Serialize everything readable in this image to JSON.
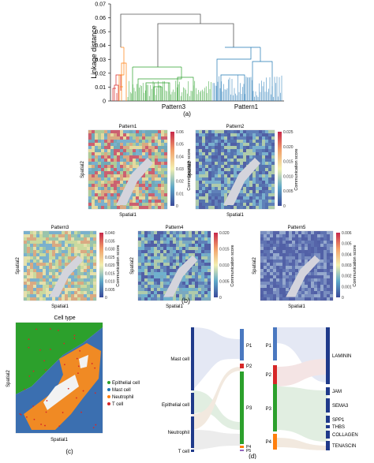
{
  "panel_a": {
    "ylabel": "Linkage distance",
    "yticks": [
      "0.07",
      "0.06",
      "0.05",
      "0.04",
      "0.03",
      "0.02",
      "0.01",
      "0"
    ],
    "cluster_labels": [
      "Pattern3",
      "Pattern1"
    ],
    "caption": "(a)",
    "colors": {
      "red": "#d62728",
      "orange": "#ff7f0e",
      "green": "#2ca02c",
      "blue": "#1f77b4",
      "link": "#555555"
    }
  },
  "panel_b": {
    "caption": "(b)",
    "xlabel": "Spatial1",
    "ylabel": "Spatial2",
    "cbar_label": "Communication score",
    "maps": [
      {
        "title": "Pattern1",
        "ticks": [
          "0.06",
          "0.05",
          "0.04",
          "0.03",
          "0.02",
          "0.01",
          "0"
        ]
      },
      {
        "title": "Pattern2",
        "ticks": [
          "0.025",
          "0.020",
          "0.015",
          "0.010",
          "0.005",
          "0"
        ]
      },
      {
        "title": "Pattern3",
        "ticks": [
          "0.040",
          "0.035",
          "0.030",
          "0.025",
          "0.020",
          "0.015",
          "0.010",
          "0.005",
          "0"
        ]
      },
      {
        "title": "Pattern4",
        "ticks": [
          "0.020",
          "0.015",
          "0.010",
          "0.005",
          "0"
        ]
      },
      {
        "title": "Pattern5",
        "ticks": [
          "0.006",
          "0.005",
          "0.004",
          "0.003",
          "0.002",
          "0.001",
          "0"
        ]
      }
    ]
  },
  "panel_c": {
    "title": "Cell type",
    "xlabel": "Spatial1",
    "ylabel": "Spatial2",
    "caption": "(c)",
    "legend": [
      {
        "label": "Epithelial cell",
        "color": "#2ca02c"
      },
      {
        "label": "Mast cell",
        "color": "#1f77b4"
      },
      {
        "label": "Neutrophil",
        "color": "#ff7f0e"
      },
      {
        "label": "T cell",
        "color": "#d62728"
      }
    ]
  },
  "panel_d": {
    "caption": "(d)",
    "cell_types": [
      "Mast cell",
      "Epithelial cell",
      "Neutrophil",
      "T cell"
    ],
    "patterns_left": [
      "P1",
      "P2",
      "P3",
      "P4",
      "P5"
    ],
    "patterns_right": [
      "P1",
      "P2",
      "P3",
      "P4"
    ],
    "pathways": [
      "LAMININ",
      "JAM",
      "SEMA3",
      "SPP1",
      "THBS",
      "COLLAGEN",
      "TENASCIN"
    ]
  }
}
